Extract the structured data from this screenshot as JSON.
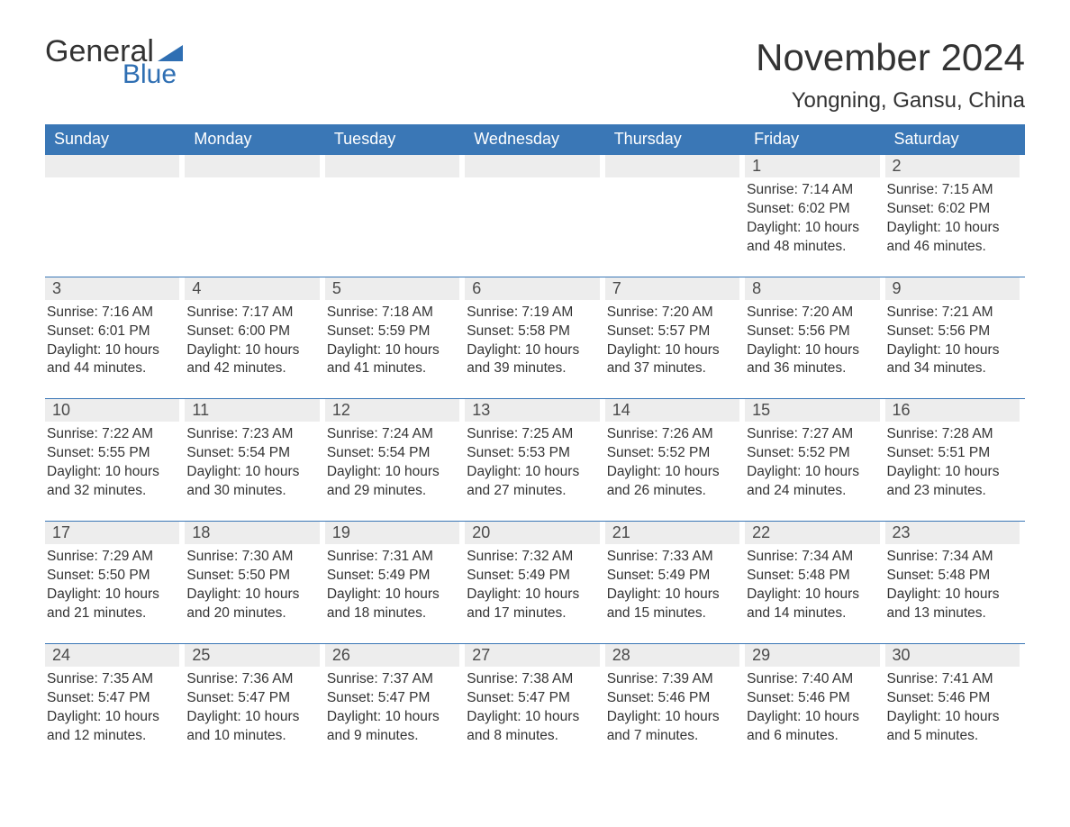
{
  "brand": {
    "word1": "General",
    "word2": "Blue",
    "logo_color": "#2f6fb3"
  },
  "title": "November 2024",
  "location": "Yongning, Gansu, China",
  "colors": {
    "header_bg": "#3a77b6",
    "header_text": "#ffffff",
    "daynum_bg": "#ededed",
    "text": "#333333",
    "rule": "#3a77b6",
    "page_bg": "#ffffff"
  },
  "fonts": {
    "title_size": 42,
    "location_size": 24,
    "dow_size": 18,
    "daynum_size": 18,
    "body_size": 15.5
  },
  "days_of_week": [
    "Sunday",
    "Monday",
    "Tuesday",
    "Wednesday",
    "Thursday",
    "Friday",
    "Saturday"
  ],
  "weeks": [
    [
      null,
      null,
      null,
      null,
      null,
      {
        "n": "1",
        "sunrise": "Sunrise: 7:14 AM",
        "sunset": "Sunset: 6:02 PM",
        "daylight": "Daylight: 10 hours and 48 minutes."
      },
      {
        "n": "2",
        "sunrise": "Sunrise: 7:15 AM",
        "sunset": "Sunset: 6:02 PM",
        "daylight": "Daylight: 10 hours and 46 minutes."
      }
    ],
    [
      {
        "n": "3",
        "sunrise": "Sunrise: 7:16 AM",
        "sunset": "Sunset: 6:01 PM",
        "daylight": "Daylight: 10 hours and 44 minutes."
      },
      {
        "n": "4",
        "sunrise": "Sunrise: 7:17 AM",
        "sunset": "Sunset: 6:00 PM",
        "daylight": "Daylight: 10 hours and 42 minutes."
      },
      {
        "n": "5",
        "sunrise": "Sunrise: 7:18 AM",
        "sunset": "Sunset: 5:59 PM",
        "daylight": "Daylight: 10 hours and 41 minutes."
      },
      {
        "n": "6",
        "sunrise": "Sunrise: 7:19 AM",
        "sunset": "Sunset: 5:58 PM",
        "daylight": "Daylight: 10 hours and 39 minutes."
      },
      {
        "n": "7",
        "sunrise": "Sunrise: 7:20 AM",
        "sunset": "Sunset: 5:57 PM",
        "daylight": "Daylight: 10 hours and 37 minutes."
      },
      {
        "n": "8",
        "sunrise": "Sunrise: 7:20 AM",
        "sunset": "Sunset: 5:56 PM",
        "daylight": "Daylight: 10 hours and 36 minutes."
      },
      {
        "n": "9",
        "sunrise": "Sunrise: 7:21 AM",
        "sunset": "Sunset: 5:56 PM",
        "daylight": "Daylight: 10 hours and 34 minutes."
      }
    ],
    [
      {
        "n": "10",
        "sunrise": "Sunrise: 7:22 AM",
        "sunset": "Sunset: 5:55 PM",
        "daylight": "Daylight: 10 hours and 32 minutes."
      },
      {
        "n": "11",
        "sunrise": "Sunrise: 7:23 AM",
        "sunset": "Sunset: 5:54 PM",
        "daylight": "Daylight: 10 hours and 30 minutes."
      },
      {
        "n": "12",
        "sunrise": "Sunrise: 7:24 AM",
        "sunset": "Sunset: 5:54 PM",
        "daylight": "Daylight: 10 hours and 29 minutes."
      },
      {
        "n": "13",
        "sunrise": "Sunrise: 7:25 AM",
        "sunset": "Sunset: 5:53 PM",
        "daylight": "Daylight: 10 hours and 27 minutes."
      },
      {
        "n": "14",
        "sunrise": "Sunrise: 7:26 AM",
        "sunset": "Sunset: 5:52 PM",
        "daylight": "Daylight: 10 hours and 26 minutes."
      },
      {
        "n": "15",
        "sunrise": "Sunrise: 7:27 AM",
        "sunset": "Sunset: 5:52 PM",
        "daylight": "Daylight: 10 hours and 24 minutes."
      },
      {
        "n": "16",
        "sunrise": "Sunrise: 7:28 AM",
        "sunset": "Sunset: 5:51 PM",
        "daylight": "Daylight: 10 hours and 23 minutes."
      }
    ],
    [
      {
        "n": "17",
        "sunrise": "Sunrise: 7:29 AM",
        "sunset": "Sunset: 5:50 PM",
        "daylight": "Daylight: 10 hours and 21 minutes."
      },
      {
        "n": "18",
        "sunrise": "Sunrise: 7:30 AM",
        "sunset": "Sunset: 5:50 PM",
        "daylight": "Daylight: 10 hours and 20 minutes."
      },
      {
        "n": "19",
        "sunrise": "Sunrise: 7:31 AM",
        "sunset": "Sunset: 5:49 PM",
        "daylight": "Daylight: 10 hours and 18 minutes."
      },
      {
        "n": "20",
        "sunrise": "Sunrise: 7:32 AM",
        "sunset": "Sunset: 5:49 PM",
        "daylight": "Daylight: 10 hours and 17 minutes."
      },
      {
        "n": "21",
        "sunrise": "Sunrise: 7:33 AM",
        "sunset": "Sunset: 5:49 PM",
        "daylight": "Daylight: 10 hours and 15 minutes."
      },
      {
        "n": "22",
        "sunrise": "Sunrise: 7:34 AM",
        "sunset": "Sunset: 5:48 PM",
        "daylight": "Daylight: 10 hours and 14 minutes."
      },
      {
        "n": "23",
        "sunrise": "Sunrise: 7:34 AM",
        "sunset": "Sunset: 5:48 PM",
        "daylight": "Daylight: 10 hours and 13 minutes."
      }
    ],
    [
      {
        "n": "24",
        "sunrise": "Sunrise: 7:35 AM",
        "sunset": "Sunset: 5:47 PM",
        "daylight": "Daylight: 10 hours and 12 minutes."
      },
      {
        "n": "25",
        "sunrise": "Sunrise: 7:36 AM",
        "sunset": "Sunset: 5:47 PM",
        "daylight": "Daylight: 10 hours and 10 minutes."
      },
      {
        "n": "26",
        "sunrise": "Sunrise: 7:37 AM",
        "sunset": "Sunset: 5:47 PM",
        "daylight": "Daylight: 10 hours and 9 minutes."
      },
      {
        "n": "27",
        "sunrise": "Sunrise: 7:38 AM",
        "sunset": "Sunset: 5:47 PM",
        "daylight": "Daylight: 10 hours and 8 minutes."
      },
      {
        "n": "28",
        "sunrise": "Sunrise: 7:39 AM",
        "sunset": "Sunset: 5:46 PM",
        "daylight": "Daylight: 10 hours and 7 minutes."
      },
      {
        "n": "29",
        "sunrise": "Sunrise: 7:40 AM",
        "sunset": "Sunset: 5:46 PM",
        "daylight": "Daylight: 10 hours and 6 minutes."
      },
      {
        "n": "30",
        "sunrise": "Sunrise: 7:41 AM",
        "sunset": "Sunset: 5:46 PM",
        "daylight": "Daylight: 10 hours and 5 minutes."
      }
    ]
  ]
}
